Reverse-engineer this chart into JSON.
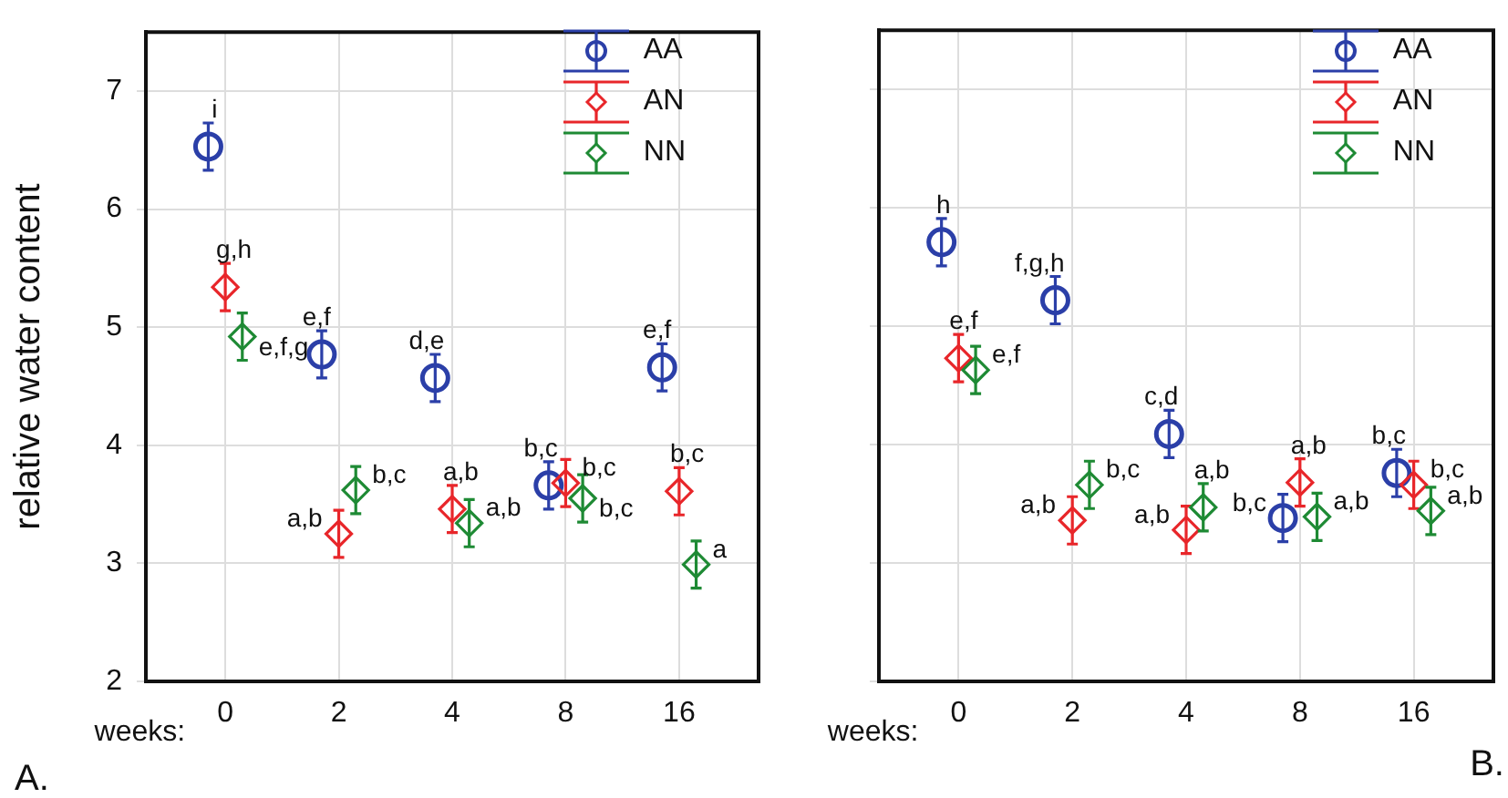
{
  "chart_data": [
    {
      "type": "scatter",
      "ylabel": "relative water content",
      "xlabel": "weeks:",
      "categories": [
        "0",
        "2",
        "4",
        "8",
        "16"
      ],
      "ylim": [
        2,
        7.5
      ],
      "yticks": [
        2,
        3,
        4,
        5,
        6,
        7
      ],
      "grid": true,
      "legend": "top right",
      "annotations": [
        "A."
      ],
      "series": [
        {
          "name": "AA",
          "color": "#2b3fa8",
          "marker": "circle",
          "values": [
            6.53,
            4.77,
            4.57,
            3.66,
            4.66
          ],
          "errors": [
            0.2,
            0.2,
            0.2,
            0.2,
            0.2
          ],
          "value_labels": [
            "i",
            "e,f",
            "d,e",
            "b,c",
            "e,f"
          ]
        },
        {
          "name": "AN",
          "color": "#e8262a",
          "marker": "diamond",
          "values": [
            5.34,
            3.25,
            3.46,
            3.68,
            3.61
          ],
          "errors": [
            0.2,
            0.2,
            0.2,
            0.2,
            0.2
          ],
          "value_labels": [
            "g,h",
            "a,b",
            "a,b",
            "b,c",
            "b,c"
          ]
        },
        {
          "name": "NN",
          "color": "#1e8a34",
          "marker": "diamond",
          "values": [
            4.92,
            3.62,
            3.34,
            3.55,
            2.99
          ],
          "errors": [
            0.2,
            0.2,
            0.2,
            0.2,
            0.2
          ],
          "value_labels": [
            "e,f,g",
            "b,c",
            "a,b",
            "b,c",
            "a"
          ]
        }
      ]
    },
    {
      "type": "scatter",
      "xlabel": "weeks:",
      "categories": [
        "0",
        "2",
        "4",
        "8",
        "16"
      ],
      "ylim": [
        2,
        7.5
      ],
      "yticks": [
        2,
        3,
        4,
        5,
        6,
        7
      ],
      "tick_labels": "x",
      "grid": true,
      "legend": "top right",
      "annotations": [
        "B."
      ],
      "series": [
        {
          "name": "AA",
          "color": "#2b3fa8",
          "marker": "circle",
          "values": [
            5.71,
            5.22,
            4.09,
            3.38,
            3.76
          ],
          "errors": [
            0.2,
            0.2,
            0.2,
            0.2,
            0.2
          ],
          "value_labels": [
            "h",
            "f,g,h",
            "c,d",
            "b,c",
            "b,c"
          ]
        },
        {
          "name": "AN",
          "color": "#e8262a",
          "marker": "diamond",
          "values": [
            4.73,
            3.36,
            3.28,
            3.68,
            3.66
          ],
          "errors": [
            0.2,
            0.2,
            0.2,
            0.2,
            0.2
          ],
          "value_labels": [
            "e,f",
            "a,b",
            "a,b",
            "a,b",
            "b,c"
          ]
        },
        {
          "name": "NN",
          "color": "#1e8a34",
          "marker": "diamond",
          "values": [
            4.63,
            3.66,
            3.47,
            3.39,
            3.44
          ],
          "errors": [
            0.2,
            0.2,
            0.2,
            0.2,
            0.2
          ],
          "value_labels": [
            "e,f",
            "b,c",
            "a,b",
            "a,b",
            "a,b"
          ]
        }
      ]
    }
  ]
}
